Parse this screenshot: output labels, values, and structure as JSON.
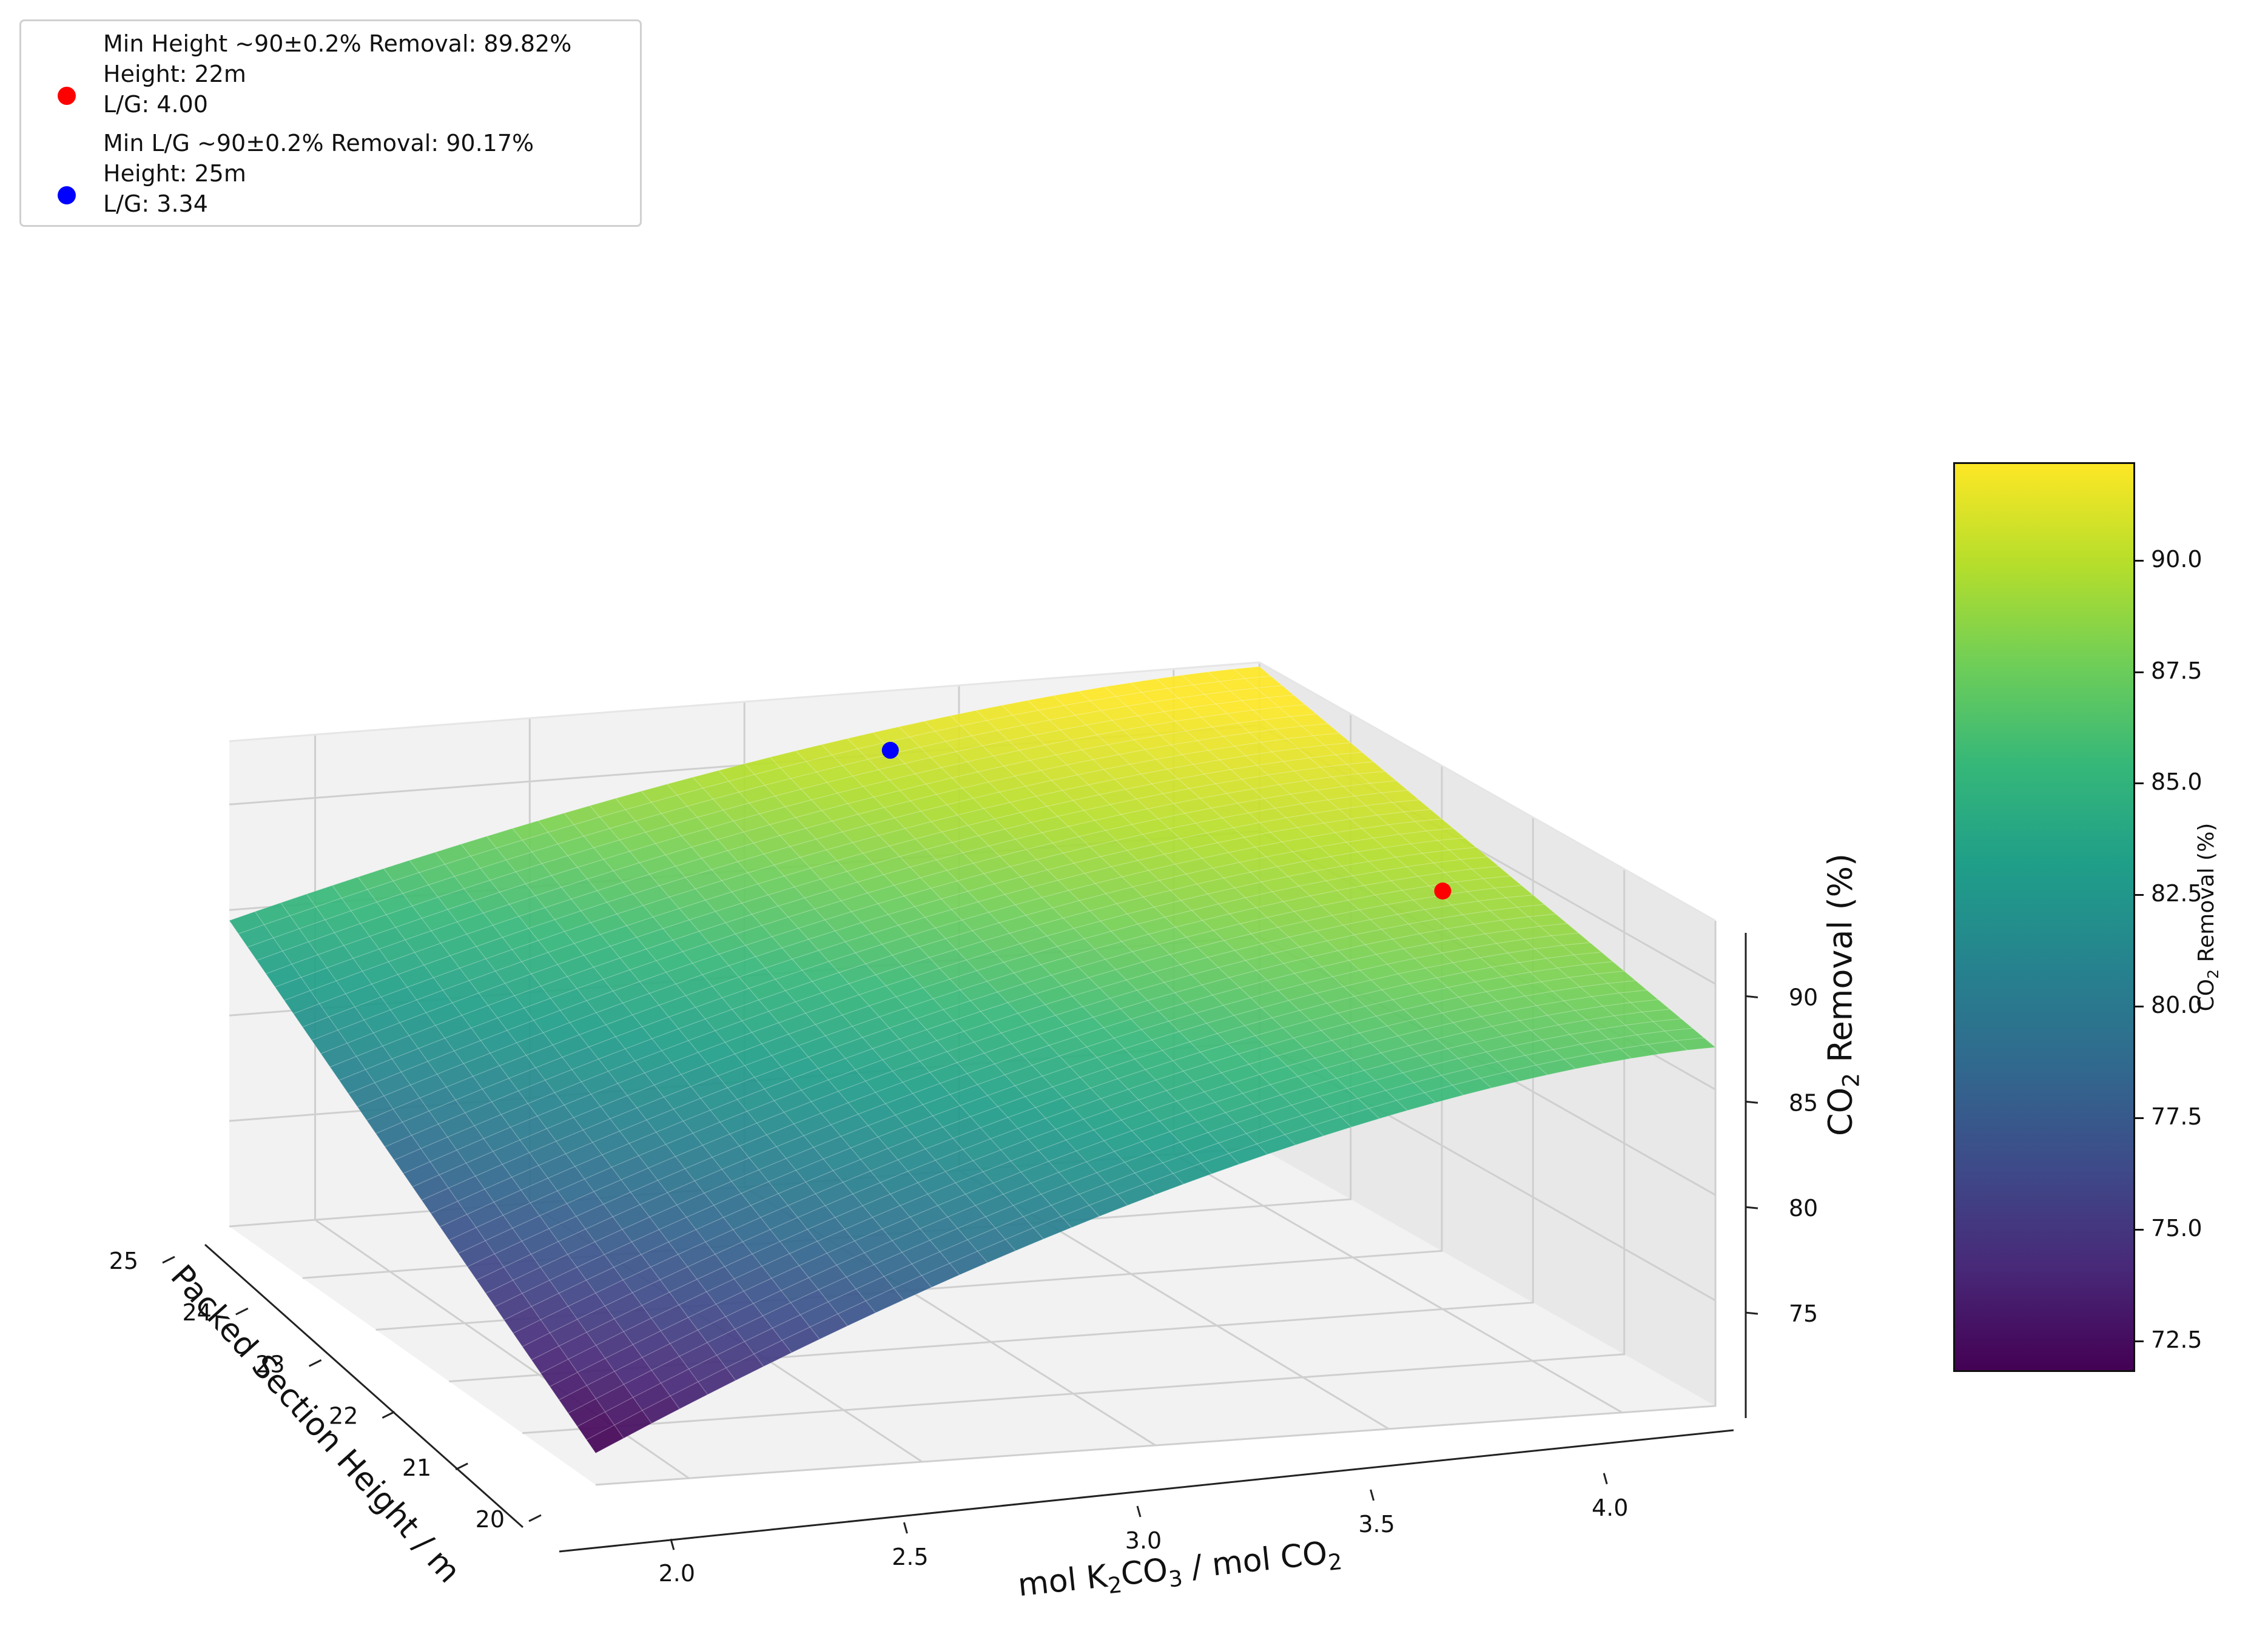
{
  "chart_data": {
    "type": "surface3d",
    "xlabel": "Packed Section Height / m",
    "ylabel": "mol K2CO3 / mol CO2",
    "zlabel": "CO2 Removal (%)",
    "x_ticks": [
      "20",
      "21",
      "22",
      "23",
      "24",
      "25"
    ],
    "y_ticks": [
      "2.0",
      "2.5",
      "3.0",
      "3.5",
      "4.0"
    ],
    "z_ticks": [
      "75",
      "80",
      "85",
      "90"
    ],
    "xlim": [
      20,
      25
    ],
    "ylim": [
      1.8,
      4.2
    ],
    "zlim": [
      70,
      93
    ],
    "surface_corners": [
      {
        "height": 20,
        "lg": 1.8,
        "removal": 71.5
      },
      {
        "height": 25,
        "lg": 1.8,
        "removal": 84.5
      },
      {
        "height": 20,
        "lg": 4.2,
        "removal": 87.0
      },
      {
        "height": 25,
        "lg": 4.2,
        "removal": 92.8
      }
    ],
    "colormap": "viridis",
    "points": [
      {
        "name": "Min Height ~90±0.2% Removal: 89.82%",
        "height": 22,
        "lg": 4.0,
        "removal": 89.82,
        "color": "#ff0000",
        "lines": [
          "Min Height ~90±0.2% Removal: 89.82%",
          "Height: 22m",
          "L/G: 4.00"
        ]
      },
      {
        "name": "Min L/G ~90±0.2% Removal: 90.17%",
        "height": 25,
        "lg": 3.34,
        "removal": 90.17,
        "color": "#0000ff",
        "lines": [
          "Min L/G ~90±0.2% Removal: 90.17%",
          "Height: 25m",
          "L/G: 3.34"
        ]
      }
    ],
    "colorbar": {
      "label": "CO2 Removal (%)",
      "ticks": [
        "72.5",
        "75.0",
        "77.5",
        "80.0",
        "82.5",
        "85.0",
        "87.5",
        "90.0"
      ],
      "range": [
        71.8,
        92.2
      ]
    },
    "legend_position": "top-left",
    "grid": true
  }
}
